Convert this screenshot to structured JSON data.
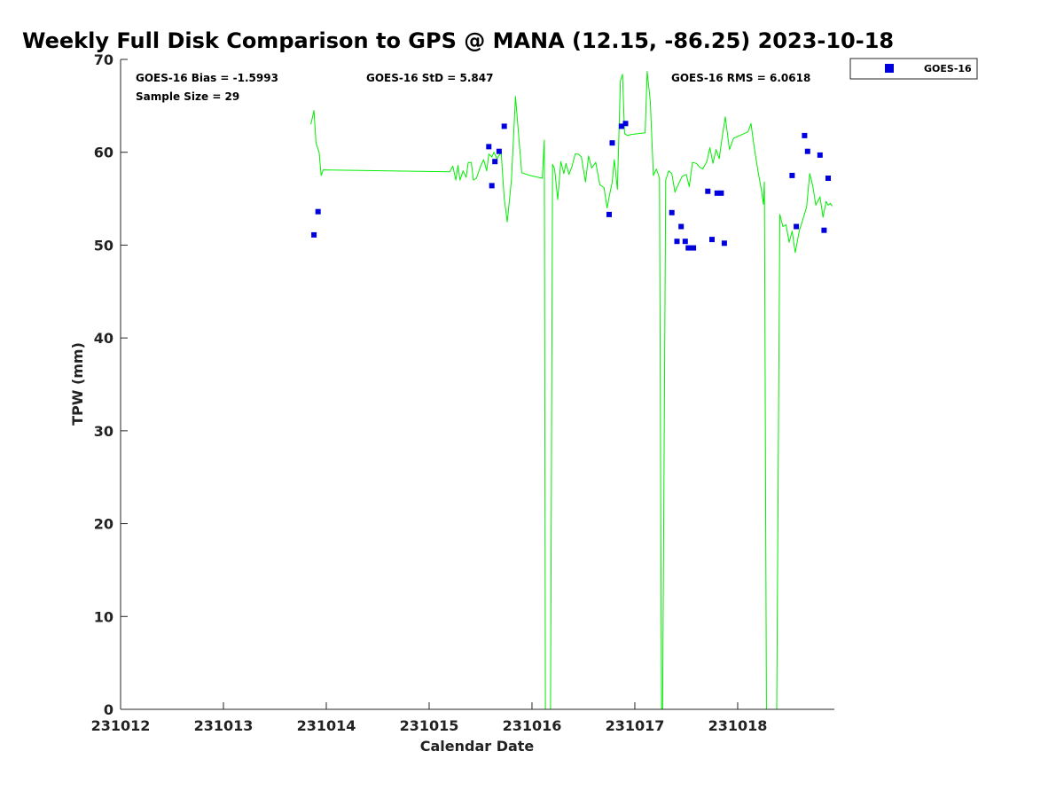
{
  "chart_data": {
    "type": "scatter",
    "title": "Weekly Full Disk Comparison to GPS @ MANA (12.15, -86.25) 2023-10-18",
    "xlabel": "Calendar Date",
    "ylabel": "TPW (mm)",
    "xlim": [
      231012,
      231018.94
    ],
    "ylim": [
      0,
      70
    ],
    "x_ticks": [
      "231012",
      "231013",
      "231014",
      "231015",
      "231016",
      "231017",
      "231018"
    ],
    "y_ticks": [
      "0",
      "10",
      "20",
      "30",
      "40",
      "50",
      "60",
      "70"
    ],
    "grid": false,
    "legend_position": "top-right, outside plot",
    "stats": {
      "bias": "GOES-16 Bias = -1.5993",
      "std": "GOES-16 StD = 5.847",
      "rms": "GOES-16 RMS = 6.0618",
      "sample_size": "Sample Size = 29"
    },
    "series": [
      {
        "name": "GOES-16",
        "kind": "scatter",
        "color": "#0000dd",
        "x": [
          231013.88,
          231013.92,
          231015.58,
          231015.61,
          231015.64,
          231015.68,
          231015.73,
          231016.75,
          231016.78,
          231016.87,
          231016.91,
          231017.36,
          231017.41,
          231017.45,
          231017.49,
          231017.52,
          231017.57,
          231017.71,
          231017.75,
          231017.8,
          231017.84,
          231017.87,
          231018.53,
          231018.57,
          231018.65,
          231018.68,
          231018.8,
          231018.84,
          231018.88
        ],
        "y": [
          51.1,
          53.6,
          60.6,
          56.4,
          59.0,
          60.1,
          62.8,
          53.3,
          61.0,
          62.8,
          63.1,
          53.5,
          50.4,
          52.0,
          50.4,
          49.7,
          49.7,
          55.8,
          50.6,
          55.6,
          55.6,
          50.2,
          57.5,
          52.0,
          61.8,
          60.1,
          59.7,
          51.6,
          57.2
        ]
      },
      {
        "name": "",
        "kind": "line",
        "color": "#00ee00",
        "x": [
          231013.85,
          231013.88,
          231013.9,
          231013.93,
          231013.95,
          231013.97,
          231015.2,
          231015.23,
          231015.26,
          231015.28,
          231015.3,
          231015.33,
          231015.36,
          231015.38,
          231015.41,
          231015.43,
          231015.46,
          231015.5,
          231015.53,
          231015.56,
          231015.58,
          231015.61,
          231015.63,
          231015.66,
          231015.7,
          231015.73,
          231015.76,
          231015.8,
          231015.84,
          231015.9,
          231015.98,
          231016.1,
          231016.12,
          231016.13,
          231016.18,
          231016.2,
          231016.22,
          231016.25,
          231016.28,
          231016.31,
          231016.33,
          231016.36,
          231016.39,
          231016.42,
          231016.45,
          231016.48,
          231016.52,
          231016.55,
          231016.58,
          231016.62,
          231016.66,
          231016.7,
          231016.73,
          231016.75,
          231016.78,
          231016.8,
          231016.83,
          231016.86,
          231016.88,
          231016.9,
          231016.93,
          231016.96,
          231017.1,
          231017.12,
          231017.15,
          231017.18,
          231017.21,
          231017.24,
          231017.26,
          231017.27,
          231017.3,
          231017.33,
          231017.36,
          231017.39,
          231017.43,
          231017.46,
          231017.5,
          231017.53,
          231017.56,
          231017.6,
          231017.63,
          231017.66,
          231017.7,
          231017.73,
          231017.76,
          231017.79,
          231017.82,
          231017.85,
          231017.88,
          231017.92,
          231017.96,
          231018.1,
          231018.13,
          231018.16,
          231018.2,
          231018.23,
          231018.25,
          231018.26,
          231018.28,
          231018.38,
          231018.41,
          231018.44,
          231018.47,
          231018.5,
          231018.53,
          231018.56,
          231018.6,
          231018.63,
          231018.67,
          231018.7,
          231018.73,
          231018.76,
          231018.8,
          231018.83,
          231018.86,
          231018.88,
          231018.9,
          231018.92
        ],
        "y": [
          63,
          64.5,
          61,
          60,
          57.5,
          58.1,
          57.9,
          58.5,
          57,
          58.6,
          57,
          58,
          57.3,
          58.9,
          58.9,
          57,
          57.2,
          58.5,
          59.2,
          58,
          59.8,
          59.5,
          60,
          59.3,
          60,
          55,
          52.5,
          57,
          66,
          57.8,
          57.5,
          57.2,
          61.3,
          0,
          0,
          58.7,
          58.2,
          54.9,
          59,
          57.7,
          58.8,
          57.6,
          58.5,
          59.8,
          59.8,
          59.5,
          56.8,
          59.6,
          58.3,
          58.9,
          56.5,
          56.2,
          54,
          55.2,
          56.8,
          59.2,
          56,
          67.7,
          68.4,
          62,
          61.8,
          61.9,
          62.1,
          68.7,
          65.5,
          57.5,
          58.2,
          57.2,
          0,
          0,
          57,
          58,
          57.7,
          55.7,
          56.7,
          57.4,
          57.6,
          56.3,
          58.9,
          58.8,
          58.4,
          58.2,
          59,
          60.5,
          58.8,
          60.3,
          59.3,
          61.7,
          63.8,
          60.3,
          61.5,
          62.2,
          63.1,
          60.6,
          57.8,
          56,
          54.4,
          56.8,
          0,
          0,
          53.3,
          52,
          52.2,
          50.3,
          51.5,
          49.2,
          51.6,
          52.6,
          54.1,
          57.7,
          56.4,
          54.3,
          55.2,
          53,
          54.7,
          54.3,
          54.5,
          54.2
        ]
      }
    ]
  }
}
